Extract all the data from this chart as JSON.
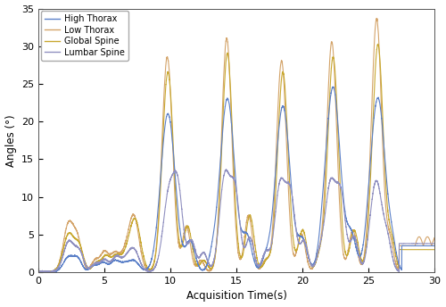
{
  "xlabel": "Acquisition Time(s)",
  "ylabel": "Angles (°)",
  "xlim": [
    0,
    30
  ],
  "ylim": [
    0,
    35
  ],
  "xticks": [
    0,
    5,
    10,
    15,
    20,
    25,
    30
  ],
  "yticks": [
    0,
    5,
    10,
    15,
    20,
    25,
    30,
    35
  ],
  "legend_labels": [
    "Global Spine",
    "High Thorax",
    "Low Thorax",
    "Lumbar Spine"
  ],
  "colors": {
    "Global Spine": "#5B80C8",
    "High Thorax": "#D4A46A",
    "Low Thorax": "#C8A830",
    "Lumbar Spine": "#9090C0"
  },
  "linewidth": 0.8,
  "background_color": "#FFFFFF",
  "figure_bg": "#FFFFFF"
}
